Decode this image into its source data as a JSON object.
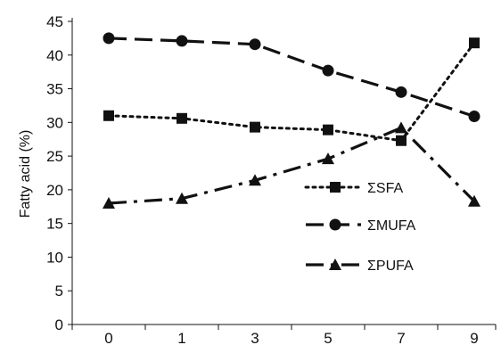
{
  "chart_data": {
    "type": "line",
    "title": "",
    "xlabel": "",
    "ylabel": "Fatty acid (%)",
    "categories": [
      "0",
      "1",
      "3",
      "5",
      "7",
      "9"
    ],
    "ylim": [
      0,
      45
    ],
    "yticks": [
      0,
      5,
      10,
      15,
      20,
      25,
      30,
      35,
      40,
      45
    ],
    "grid": false,
    "legend_position": "center-right",
    "series": [
      {
        "name": "ΣSFA",
        "values": [
          31.0,
          30.6,
          29.3,
          28.9,
          27.3,
          41.8
        ],
        "marker": "square",
        "line_style": "dotted",
        "color": "#111111"
      },
      {
        "name": "ΣMUFA",
        "values": [
          42.5,
          42.1,
          41.6,
          37.7,
          34.5,
          30.9
        ],
        "marker": "circle",
        "line_style": "dashed",
        "color": "#111111"
      },
      {
        "name": "ΣPUFA",
        "values": [
          18.0,
          18.7,
          21.4,
          24.6,
          29.2,
          18.3
        ],
        "marker": "triangle",
        "line_style": "dash-dot",
        "color": "#111111"
      }
    ]
  }
}
